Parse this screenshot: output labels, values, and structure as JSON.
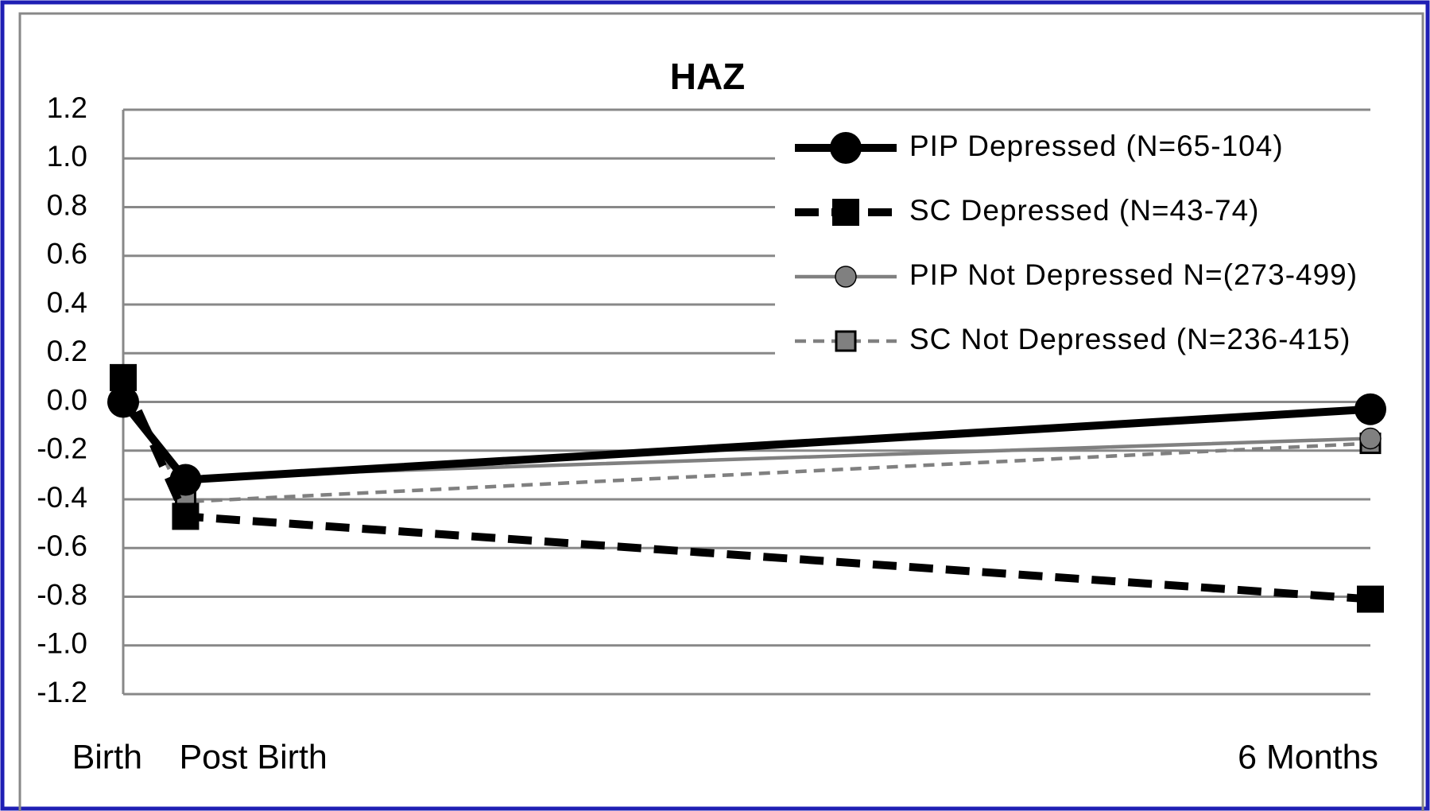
{
  "chart_data": {
    "type": "line",
    "title": "HAZ",
    "categories": [
      "Birth",
      "Post Birth",
      "6 Months"
    ],
    "x": [
      0,
      0.3,
      6
    ],
    "xlim": [
      0,
      6
    ],
    "series": [
      {
        "name": "PIP Depressed (N=65-104)",
        "color": "#000000",
        "line_style": "solid",
        "marker": "circle",
        "values": [
          0.0,
          -0.32,
          -0.03
        ]
      },
      {
        "name": "SC Depressed (N=43-74)",
        "color": "#000000",
        "line_style": "dashed",
        "marker": "square",
        "values": [
          0.1,
          -0.47,
          -0.81
        ]
      },
      {
        "name": "PIP Not Depressed N=(273-499)",
        "color": "#808080",
        "line_style": "solid",
        "marker": "circle",
        "values": [
          0.0,
          -0.31,
          -0.15
        ]
      },
      {
        "name": "SC Not Depressed (N=236-415)",
        "color": "#808080",
        "line_style": "dashed",
        "marker": "square",
        "values": [
          0.1,
          -0.41,
          -0.17
        ]
      }
    ],
    "ylim": [
      -1.2,
      1.2
    ],
    "yticks": [
      1.2,
      {
        "value": 1.0,
        "label": "1.0"
      },
      0.8,
      0.6,
      0.4,
      0.2,
      {
        "value": 0.0,
        "label": "0.0"
      },
      -0.2,
      -0.4,
      -0.6,
      -0.8,
      {
        "value": -1.0,
        "label": "-1.0"
      },
      -1.2
    ],
    "grid": true,
    "legend": "upper right"
  }
}
